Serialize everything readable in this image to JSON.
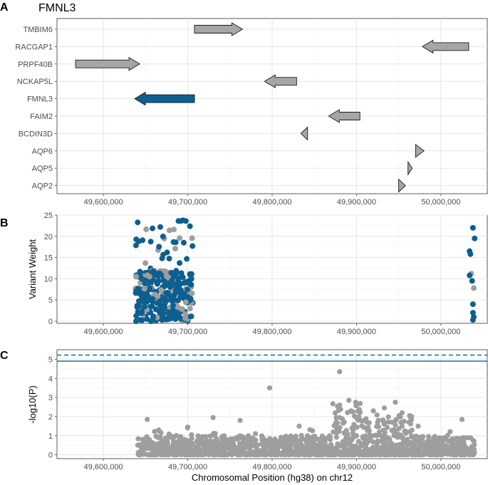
{
  "colors": {
    "highlight": "#0d5f8f",
    "gene_default": "#a6a6a6",
    "point_grey": "#9e9e9e",
    "point_blue": "#0d5f8f",
    "threshold": "#0d5f8f"
  },
  "chart_data": [
    {
      "panel": "A",
      "type": "gene-track",
      "title": "FMNL3",
      "xlim": [
        49545000,
        50055000
      ],
      "x_ticks": [
        49600000,
        49700000,
        49800000,
        49900000,
        50000000
      ],
      "x_tick_labels": [
        "49,600,000",
        "49,700,000",
        "49,800,000",
        "49,900,000",
        "50,000,000"
      ],
      "genes": [
        {
          "name": "TMBIM6",
          "start": 49708000,
          "end": 49765000,
          "strand": "+",
          "highlight": false
        },
        {
          "name": "RACGAP1",
          "start": 49978000,
          "end": 50033000,
          "strand": "-",
          "highlight": false
        },
        {
          "name": "PRPF40B",
          "start": 49567000,
          "end": 49643000,
          "strand": "+",
          "highlight": false
        },
        {
          "name": "NCKAP5L",
          "start": 49791000,
          "end": 49829000,
          "strand": "-",
          "highlight": false
        },
        {
          "name": "FMNL3",
          "start": 49637000,
          "end": 49708000,
          "strand": "-",
          "highlight": true
        },
        {
          "name": "FAIM2",
          "start": 49867000,
          "end": 49904000,
          "strand": "-",
          "highlight": false
        },
        {
          "name": "BCDIN3D",
          "start": 49834000,
          "end": 49842000,
          "strand": "-",
          "highlight": false
        },
        {
          "name": "AQP6",
          "start": 49970000,
          "end": 49980000,
          "strand": "+",
          "highlight": false
        },
        {
          "name": "AQP5",
          "start": 49961000,
          "end": 49966000,
          "strand": "+",
          "highlight": false
        },
        {
          "name": "AQP2",
          "start": 49950000,
          "end": 49958000,
          "strand": "+",
          "highlight": false
        }
      ]
    },
    {
      "panel": "B",
      "type": "scatter",
      "ylabel": "Variant Weight",
      "xlim": [
        49545000,
        50055000
      ],
      "ylim": [
        -0.5,
        25
      ],
      "y_ticks": [
        0,
        5,
        10,
        15,
        20,
        25
      ],
      "x_ticks": [
        49600000,
        49700000,
        49800000,
        49900000,
        50000000
      ],
      "x_tick_labels": [
        "49,600,000",
        "49,700,000",
        "49,800,000",
        "49,900,000",
        "50,000,000"
      ],
      "cluster": {
        "x_range": [
          49638000,
          49706000
        ],
        "y_max": 24,
        "count_blue": 260,
        "count_grey": 70
      },
      "right_points": [
        {
          "x": 50038000,
          "y": 22,
          "c": "blue"
        },
        {
          "x": 50040000,
          "y": 19.5,
          "c": "blue"
        },
        {
          "x": 50034000,
          "y": 16.5,
          "c": "blue"
        },
        {
          "x": 50035000,
          "y": 15.8,
          "c": "blue"
        },
        {
          "x": 50036000,
          "y": 11.2,
          "c": "grey"
        },
        {
          "x": 50034000,
          "y": 10.8,
          "c": "blue"
        },
        {
          "x": 50037000,
          "y": 9.5,
          "c": "blue"
        },
        {
          "x": 50039000,
          "y": 7.8,
          "c": "grey"
        },
        {
          "x": 50038000,
          "y": 4,
          "c": "blue"
        },
        {
          "x": 50038000,
          "y": 2,
          "c": "blue"
        },
        {
          "x": 50039000,
          "y": 1,
          "c": "blue"
        },
        {
          "x": 50038000,
          "y": 0.3,
          "c": "blue"
        }
      ]
    },
    {
      "panel": "C",
      "type": "scatter",
      "ylabel": "-log10(P)",
      "xlabel": "Chromosomal Position (hg38) on chr12",
      "xlim": [
        49545000,
        50055000
      ],
      "ylim": [
        -0.2,
        5.5
      ],
      "y_ticks": [
        0,
        1,
        2,
        3,
        4,
        5
      ],
      "x_ticks": [
        49600000,
        49700000,
        49800000,
        49900000,
        50000000
      ],
      "x_tick_labels": [
        "49,600,000",
        "49,700,000",
        "49,800,000",
        "49,900,000",
        "50,000,000"
      ],
      "thresholds": [
        {
          "y": 5.22,
          "style": "dashed"
        },
        {
          "y": 4.9,
          "style": "solid"
        }
      ],
      "x_range": [
        49640000,
        50040000
      ],
      "count": 1500,
      "peaks": [
        {
          "x": 49880000,
          "y": 4.35
        },
        {
          "x": 49797000,
          "y": 3.5
        },
        {
          "x": 49891000,
          "y": 2.85
        },
        {
          "x": 49946000,
          "y": 2.75
        },
        {
          "x": 49899000,
          "y": 2.75
        },
        {
          "x": 49880000,
          "y": 2.6
        },
        {
          "x": 49933000,
          "y": 2.45
        },
        {
          "x": 49920000,
          "y": 2.3
        },
        {
          "x": 49954000,
          "y": 2.2
        },
        {
          "x": 49963000,
          "y": 2.05
        },
        {
          "x": 49730000,
          "y": 1.95
        },
        {
          "x": 49652000,
          "y": 1.85
        },
        {
          "x": 50025000,
          "y": 1.85
        },
        {
          "x": 49762000,
          "y": 1.8
        },
        {
          "x": 49973000,
          "y": 1.5
        },
        {
          "x": 49832000,
          "y": 1.5
        },
        {
          "x": 49700000,
          "y": 1.45
        }
      ]
    }
  ]
}
